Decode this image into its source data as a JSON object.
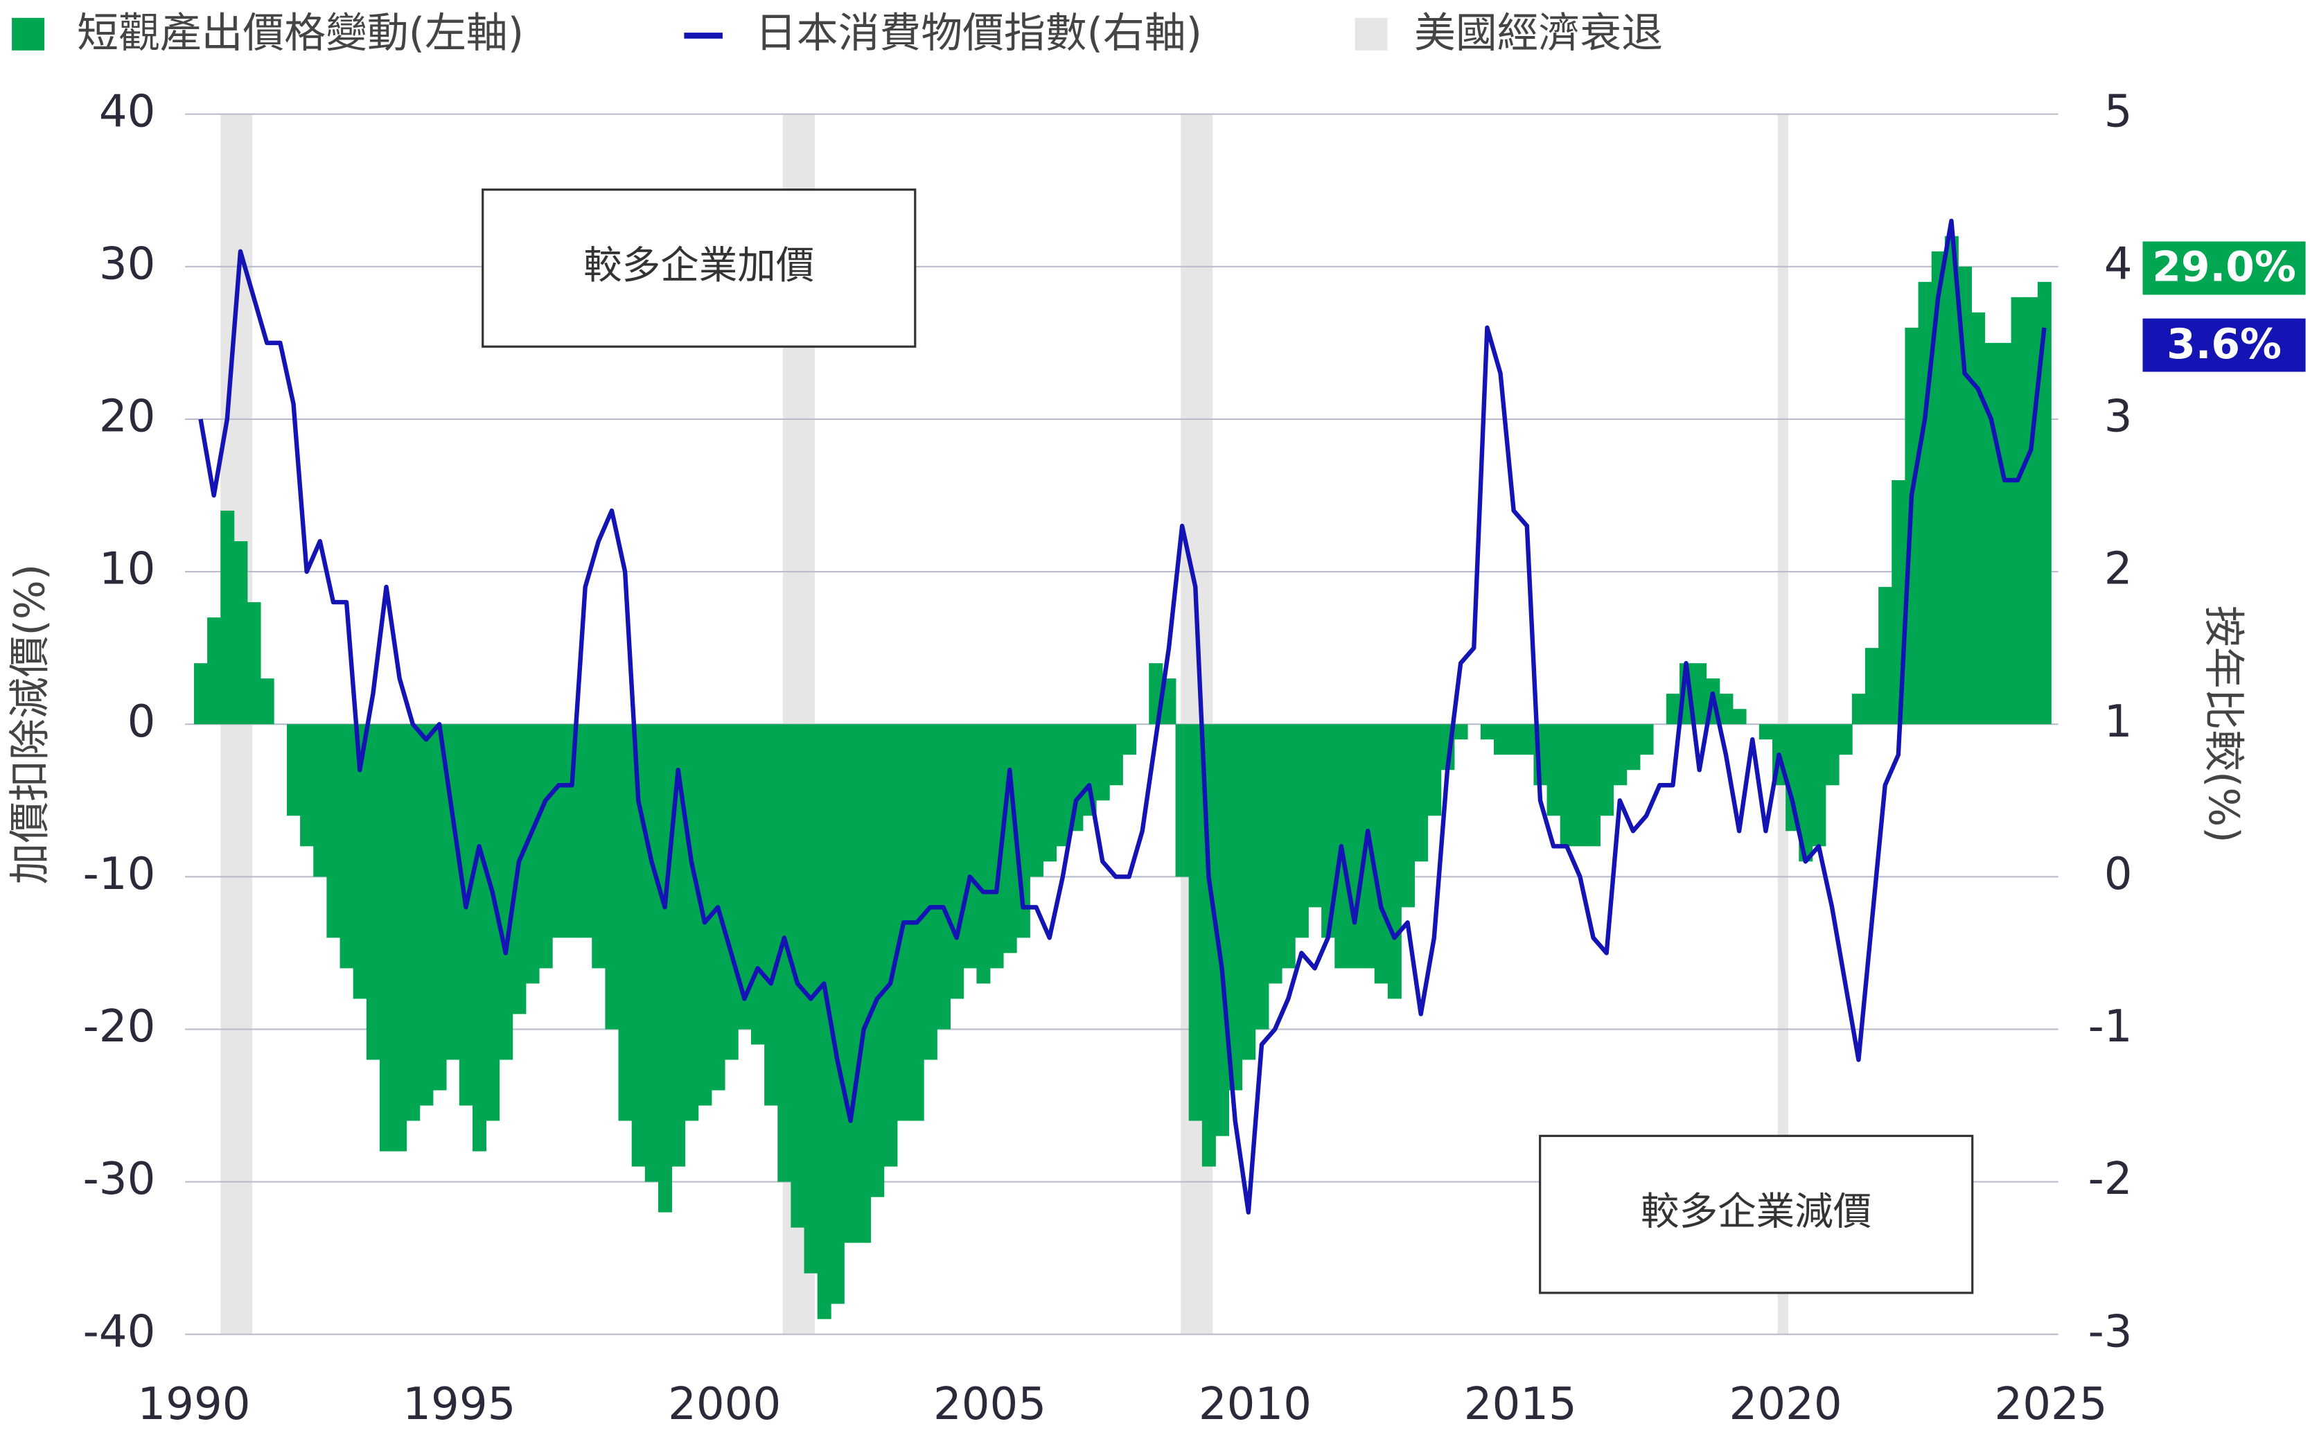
{
  "chart_data": {
    "type": "bar-line",
    "x": [
      1990,
      1990.25,
      1990.5,
      1990.75,
      1991,
      1991.25,
      1991.5,
      1991.75,
      1992,
      1992.25,
      1992.5,
      1992.75,
      1993,
      1993.25,
      1993.5,
      1993.75,
      1994,
      1994.25,
      1994.5,
      1994.75,
      1995,
      1995.25,
      1995.5,
      1995.75,
      1996,
      1996.25,
      1996.5,
      1996.75,
      1997,
      1997.25,
      1997.5,
      1997.75,
      1998,
      1998.25,
      1998.5,
      1998.75,
      1999,
      1999.25,
      1999.5,
      1999.75,
      2000,
      2000.25,
      2000.5,
      2000.75,
      2001,
      2001.25,
      2001.5,
      2001.75,
      2002,
      2002.25,
      2002.5,
      2002.75,
      2003,
      2003.25,
      2003.5,
      2003.75,
      2004,
      2004.25,
      2004.5,
      2004.75,
      2005,
      2005.25,
      2005.5,
      2005.75,
      2006,
      2006.25,
      2006.5,
      2006.75,
      2007,
      2007.25,
      2007.5,
      2007.75,
      2008,
      2008.25,
      2008.5,
      2008.75,
      2009,
      2009.25,
      2009.5,
      2009.75,
      2010,
      2010.25,
      2010.5,
      2010.75,
      2011,
      2011.25,
      2011.5,
      2011.75,
      2012,
      2012.25,
      2012.5,
      2012.75,
      2013,
      2013.25,
      2013.5,
      2013.75,
      2014,
      2014.25,
      2014.5,
      2014.75,
      2015,
      2015.25,
      2015.5,
      2015.75,
      2016,
      2016.25,
      2016.5,
      2016.75,
      2017,
      2017.25,
      2017.5,
      2017.75,
      2018,
      2018.25,
      2018.5,
      2018.75,
      2019,
      2019.25,
      2019.5,
      2019.75,
      2020,
      2020.25,
      2020.5,
      2020.75,
      2021,
      2021.25,
      2021.5,
      2021.75,
      2022,
      2022.25,
      2022.5,
      2022.75,
      2023,
      2023.25,
      2023.5,
      2023.75,
      2024,
      2024.25,
      2024.5,
      2024.75
    ],
    "series": [
      {
        "name": "短觀產出價格變動(左軸)",
        "color": "#00a651",
        "end_label": "29.0%",
        "values": [
          4,
          7,
          14,
          12,
          8,
          3,
          0,
          -6,
          -8,
          -10,
          -14,
          -16,
          -18,
          -22,
          -28,
          -28,
          -26,
          -25,
          -24,
          -22,
          -25,
          -28,
          -26,
          -22,
          -19,
          -17,
          -16,
          -14,
          -14,
          -14,
          -16,
          -20,
          -26,
          -29,
          -30,
          -32,
          -29,
          -26,
          -25,
          -24,
          -22,
          -20,
          -21,
          -25,
          -30,
          -33,
          -36,
          -39,
          -38,
          -34,
          -34,
          -31,
          -29,
          -26,
          -26,
          -22,
          -20,
          -18,
          -16,
          -17,
          -16,
          -15,
          -14,
          -10,
          -9,
          -8,
          -7,
          -6,
          -5,
          -4,
          -2,
          0,
          4,
          3,
          -10,
          -26,
          -29,
          -27,
          -24,
          -22,
          -20,
          -17,
          -16,
          -14,
          -12,
          -14,
          -16,
          -16,
          -16,
          -17,
          -18,
          -12,
          -9,
          -6,
          -3,
          -1,
          0,
          -1,
          -2,
          -2,
          -2,
          -4,
          -6,
          -8,
          -8,
          -8,
          -6,
          -4,
          -3,
          -2,
          0,
          2,
          4,
          4,
          3,
          2,
          1,
          0,
          -1,
          -4,
          -7,
          -9,
          -8,
          -4,
          -2,
          2,
          5,
          9,
          16,
          26,
          29,
          31,
          32,
          30,
          27,
          25,
          25,
          28,
          28,
          29
        ]
      },
      {
        "name": "日本消費物價指數(右軸)",
        "color": "#1414b4",
        "axis": "y2",
        "end_label": "3.6%",
        "values": [
          3.0,
          2.5,
          3.0,
          4.1,
          3.8,
          3.5,
          3.5,
          3.1,
          2.0,
          2.2,
          1.8,
          1.8,
          0.7,
          1.2,
          1.9,
          1.3,
          1.0,
          0.9,
          1.0,
          0.4,
          -0.2,
          0.2,
          -0.1,
          -0.5,
          0.1,
          0.3,
          0.5,
          0.6,
          0.6,
          1.9,
          2.2,
          2.4,
          2.0,
          0.5,
          0.1,
          -0.2,
          0.7,
          0.1,
          -0.3,
          -0.2,
          -0.5,
          -0.8,
          -0.6,
          -0.7,
          -0.4,
          -0.7,
          -0.8,
          -0.7,
          -1.2,
          -1.6,
          -1.0,
          -0.8,
          -0.7,
          -0.3,
          -0.3,
          -0.2,
          -0.2,
          -0.4,
          0.0,
          -0.1,
          -0.1,
          0.7,
          -0.2,
          -0.2,
          -0.4,
          0.0,
          0.5,
          0.6,
          0.1,
          0.0,
          0.0,
          0.3,
          0.9,
          1.5,
          2.3,
          1.9,
          0.0,
          -0.6,
          -1.6,
          -2.2,
          -1.1,
          -1.0,
          -0.8,
          -0.5,
          -0.6,
          -0.4,
          0.2,
          -0.3,
          0.3,
          -0.2,
          -0.4,
          -0.3,
          -0.9,
          -0.4,
          0.7,
          1.4,
          1.5,
          3.6,
          3.3,
          2.4,
          2.3,
          0.5,
          0.2,
          0.2,
          0.0,
          -0.4,
          -0.5,
          0.5,
          0.3,
          0.4,
          0.6,
          0.6,
          1.4,
          0.7,
          1.2,
          0.8,
          0.3,
          0.9,
          0.3,
          0.8,
          0.5,
          0.1,
          0.2,
          -0.2,
          -0.7,
          -1.2,
          -0.3,
          0.6,
          0.8,
          2.5,
          3.0,
          3.8,
          4.3,
          3.3,
          3.2,
          3.0,
          2.6,
          2.6,
          2.8,
          3.6
        ]
      }
    ],
    "recessions": {
      "name": "美國經濟衰退",
      "color": "#e6e6e6",
      "periods": [
        [
          1990.5,
          1991.1
        ],
        [
          2001.1,
          2001.7
        ],
        [
          2008.6,
          2009.2
        ],
        [
          2019.85,
          2020.05
        ]
      ]
    },
    "xlim": [
      1990,
      2025
    ],
    "xticks": [
      1990,
      1995,
      2000,
      2005,
      2010,
      2015,
      2020,
      2025
    ],
    "ylim": [
      -40,
      40
    ],
    "yticks": [
      -40,
      -30,
      -20,
      -10,
      0,
      10,
      20,
      30,
      40
    ],
    "y2lim": [
      -3,
      5
    ],
    "y2ticks": [
      -3,
      -2,
      -1,
      0,
      1,
      2,
      3,
      4,
      5
    ],
    "ylabel": "加價扣除減價(%)",
    "y2label": "按年比較(%)",
    "annotations": [
      "較多企業加價",
      "較多企業減價"
    ],
    "grid": true
  }
}
